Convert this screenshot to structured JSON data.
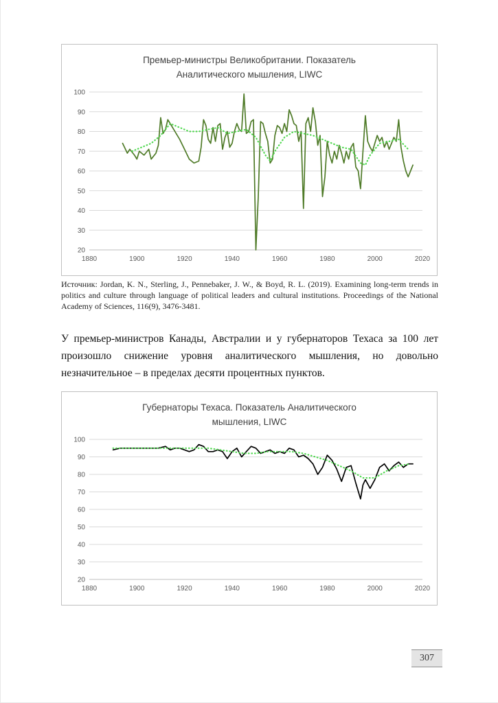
{
  "page": {
    "source_note": "Источник: Jordan, K. N., Sterling, J., Pennebaker, J. W., & Boyd, R. L. (2019). Examining long-term trends in politics and culture through language of political leaders and cultural institutions. Proceedings of the National Academy of Sciences, 116(9), 3476-3481.",
    "paragraph": "У премьер-министров Канады, Австралии и у губернаторов Техаса за 100 лет произошло снижение уровня аналитического мышления, но довольно незначительное – в пределах десяти процентных пунктов.",
    "page_number": "307"
  },
  "chart_data": [
    {
      "type": "line",
      "title": "Премьер-министры Великобритании. Показатель Аналитического мышления, LIWC",
      "xlabel": "",
      "ylabel": "",
      "xlim": [
        1880,
        2020
      ],
      "ylim": [
        20,
        100
      ],
      "xtick": 20,
      "ytick": 10,
      "grid": true,
      "legend": "none",
      "series": [
        {
          "name": "main",
          "color": "#4e7a27",
          "style": "solid",
          "points": [
            [
              1894,
              74
            ],
            [
              1896,
              69
            ],
            [
              1897,
              71
            ],
            [
              1899,
              68
            ],
            [
              1900,
              66
            ],
            [
              1901,
              70
            ],
            [
              1903,
              68
            ],
            [
              1905,
              71
            ],
            [
              1906,
              66
            ],
            [
              1908,
              69
            ],
            [
              1909,
              73
            ],
            [
              1910,
              87
            ],
            [
              1911,
              79
            ],
            [
              1912,
              81
            ],
            [
              1913,
              86
            ],
            [
              1914,
              84
            ],
            [
              1916,
              80
            ],
            [
              1918,
              76
            ],
            [
              1920,
              71
            ],
            [
              1922,
              66
            ],
            [
              1924,
              64
            ],
            [
              1926,
              65
            ],
            [
              1927,
              72
            ],
            [
              1928,
              86
            ],
            [
              1929,
              83
            ],
            [
              1930,
              76
            ],
            [
              1931,
              74
            ],
            [
              1932,
              82
            ],
            [
              1933,
              75
            ],
            [
              1934,
              83
            ],
            [
              1935,
              84
            ],
            [
              1936,
              71
            ],
            [
              1937,
              77
            ],
            [
              1938,
              80
            ],
            [
              1939,
              72
            ],
            [
              1940,
              74
            ],
            [
              1941,
              80
            ],
            [
              1942,
              84
            ],
            [
              1943,
              81
            ],
            [
              1944,
              80
            ],
            [
              1945,
              99
            ],
            [
              1946,
              79
            ],
            [
              1947,
              80
            ],
            [
              1948,
              85
            ],
            [
              1949,
              86
            ],
            [
              1950,
              20
            ],
            [
              1951,
              47
            ],
            [
              1952,
              85
            ],
            [
              1953,
              84
            ],
            [
              1954,
              79
            ],
            [
              1955,
              75
            ],
            [
              1956,
              64
            ],
            [
              1957,
              66
            ],
            [
              1958,
              78
            ],
            [
              1959,
              83
            ],
            [
              1960,
              82
            ],
            [
              1961,
              79
            ],
            [
              1962,
              84
            ],
            [
              1963,
              80
            ],
            [
              1964,
              91
            ],
            [
              1965,
              88
            ],
            [
              1966,
              84
            ],
            [
              1967,
              83
            ],
            [
              1968,
              75
            ],
            [
              1969,
              80
            ],
            [
              1970,
              41
            ],
            [
              1971,
              84
            ],
            [
              1972,
              87
            ],
            [
              1973,
              80
            ],
            [
              1974,
              92
            ],
            [
              1975,
              85
            ],
            [
              1976,
              73
            ],
            [
              1977,
              78
            ],
            [
              1978,
              47
            ],
            [
              1979,
              57
            ],
            [
              1980,
              75
            ],
            [
              1981,
              68
            ],
            [
              1982,
              64
            ],
            [
              1983,
              70
            ],
            [
              1984,
              66
            ],
            [
              1985,
              73
            ],
            [
              1986,
              69
            ],
            [
              1987,
              64
            ],
            [
              1988,
              70
            ],
            [
              1989,
              66
            ],
            [
              1990,
              72
            ],
            [
              1991,
              74
            ],
            [
              1992,
              62
            ],
            [
              1993,
              60
            ],
            [
              1994,
              51
            ],
            [
              1995,
              70
            ],
            [
              1996,
              88
            ],
            [
              1997,
              75
            ],
            [
              1998,
              72
            ],
            [
              1999,
              70
            ],
            [
              2000,
              74
            ],
            [
              2001,
              78
            ],
            [
              2002,
              75
            ],
            [
              2003,
              77
            ],
            [
              2004,
              72
            ],
            [
              2005,
              75
            ],
            [
              2006,
              71
            ],
            [
              2007,
              74
            ],
            [
              2008,
              77
            ],
            [
              2009,
              75
            ],
            [
              2010,
              86
            ],
            [
              2011,
              72
            ],
            [
              2012,
              65
            ],
            [
              2013,
              60
            ],
            [
              2014,
              57
            ],
            [
              2015,
              60
            ],
            [
              2016,
              63
            ]
          ]
        },
        {
          "name": "trend",
          "color": "#4fd84f",
          "style": "dotted",
          "points": [
            [
              1898,
              70
            ],
            [
              1902,
              72
            ],
            [
              1906,
              74
            ],
            [
              1910,
              78
            ],
            [
              1914,
              84
            ],
            [
              1918,
              82
            ],
            [
              1922,
              80
            ],
            [
              1926,
              80
            ],
            [
              1930,
              81
            ],
            [
              1934,
              82
            ],
            [
              1938,
              79
            ],
            [
              1942,
              80
            ],
            [
              1946,
              81
            ],
            [
              1950,
              77
            ],
            [
              1954,
              68
            ],
            [
              1956,
              65
            ],
            [
              1958,
              70
            ],
            [
              1962,
              77
            ],
            [
              1966,
              80
            ],
            [
              1970,
              79
            ],
            [
              1974,
              78
            ],
            [
              1978,
              76
            ],
            [
              1982,
              74
            ],
            [
              1986,
              72
            ],
            [
              1990,
              71
            ],
            [
              1994,
              64
            ],
            [
              1996,
              63
            ],
            [
              1998,
              68
            ],
            [
              2002,
              74
            ],
            [
              2006,
              75
            ],
            [
              2010,
              76
            ],
            [
              2014,
              71
            ]
          ]
        }
      ]
    },
    {
      "type": "line",
      "title": "Губернаторы Техаса. Показатель Аналитического мышления, LIWC",
      "xlabel": "",
      "ylabel": "",
      "xlim": [
        1880,
        2020
      ],
      "ylim": [
        20,
        100
      ],
      "xtick": 20,
      "ytick": 10,
      "grid": true,
      "legend": "none",
      "series": [
        {
          "name": "main",
          "color": "#000000",
          "style": "solid",
          "points": [
            [
              1890,
              94
            ],
            [
              1893,
              95
            ],
            [
              1895,
              95
            ],
            [
              1898,
              95
            ],
            [
              1900,
              95
            ],
            [
              1903,
              95
            ],
            [
              1906,
              95
            ],
            [
              1909,
              95
            ],
            [
              1912,
              96
            ],
            [
              1914,
              94
            ],
            [
              1916,
              95
            ],
            [
              1918,
              95
            ],
            [
              1920,
              94
            ],
            [
              1922,
              93
            ],
            [
              1924,
              94
            ],
            [
              1926,
              97
            ],
            [
              1928,
              96
            ],
            [
              1930,
              93
            ],
            [
              1932,
              93
            ],
            [
              1934,
              94
            ],
            [
              1936,
              93
            ],
            [
              1938,
              89
            ],
            [
              1940,
              93
            ],
            [
              1942,
              95
            ],
            [
              1944,
              90
            ],
            [
              1946,
              93
            ],
            [
              1948,
              96
            ],
            [
              1950,
              95
            ],
            [
              1952,
              92
            ],
            [
              1954,
              93
            ],
            [
              1956,
              94
            ],
            [
              1958,
              92
            ],
            [
              1960,
              93
            ],
            [
              1962,
              92
            ],
            [
              1964,
              95
            ],
            [
              1966,
              94
            ],
            [
              1968,
              90
            ],
            [
              1970,
              91
            ],
            [
              1972,
              89
            ],
            [
              1974,
              86
            ],
            [
              1976,
              80
            ],
            [
              1978,
              84
            ],
            [
              1980,
              91
            ],
            [
              1982,
              88
            ],
            [
              1984,
              83
            ],
            [
              1986,
              76
            ],
            [
              1988,
              84
            ],
            [
              1990,
              85
            ],
            [
              1992,
              75
            ],
            [
              1994,
              66
            ],
            [
              1995,
              74
            ],
            [
              1996,
              77
            ],
            [
              1998,
              72
            ],
            [
              2000,
              77
            ],
            [
              2002,
              84
            ],
            [
              2004,
              86
            ],
            [
              2006,
              82
            ],
            [
              2008,
              85
            ],
            [
              2010,
              87
            ],
            [
              2012,
              84
            ],
            [
              2014,
              86
            ],
            [
              2016,
              86
            ]
          ]
        },
        {
          "name": "trend",
          "color": "#4fd84f",
          "style": "dotted",
          "points": [
            [
              1890,
              95
            ],
            [
              1900,
              95
            ],
            [
              1910,
              95
            ],
            [
              1920,
              95
            ],
            [
              1930,
              95
            ],
            [
              1935,
              94
            ],
            [
              1940,
              93
            ],
            [
              1945,
              92
            ],
            [
              1950,
              92
            ],
            [
              1955,
              93
            ],
            [
              1960,
              93
            ],
            [
              1965,
              93
            ],
            [
              1970,
              92
            ],
            [
              1975,
              90
            ],
            [
              1980,
              88
            ],
            [
              1985,
              85
            ],
            [
              1990,
              82
            ],
            [
              1995,
              78
            ],
            [
              2000,
              78
            ],
            [
              2005,
              82
            ],
            [
              2010,
              85
            ],
            [
              2015,
              86
            ]
          ]
        }
      ]
    }
  ]
}
